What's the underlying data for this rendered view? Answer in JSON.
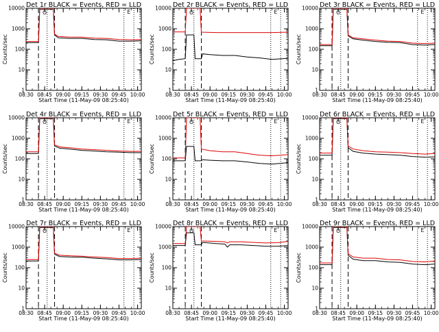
{
  "chart_data": {
    "type": "line",
    "scale": "log",
    "ylim": [
      1,
      10000
    ],
    "xlim": [
      "08:30",
      "10:03"
    ],
    "y_ticks": [
      "1",
      "10",
      "100",
      "1000",
      "10000"
    ],
    "x_ticks": [
      "08:30",
      "08:45",
      "09:00",
      "09:15",
      "09:30",
      "09:45",
      "10:00"
    ],
    "ylabel": "Counts/sec",
    "xlabel": "Start Time (11-May-09 08:25:40)",
    "colors": {
      "black_series": "#000000",
      "red_series": "#dd0000",
      "axes": "#000000"
    },
    "markers": {
      "circle_text": "O",
      "letter_text": "E"
    },
    "panels": [
      {
        "title": "Det 1r BLACK = Events, RED = LLD",
        "vlines_dashed": [
          "08:40",
          "08:53"
        ],
        "vlines_dotted": [
          "08:47",
          "09:49",
          "09:57"
        ],
        "black": [
          [
            "08:30",
            210
          ],
          [
            "08:40",
            210
          ],
          [
            "08:41",
            9000
          ],
          [
            "08:52",
            9000
          ],
          [
            "08:53",
            500
          ],
          [
            "08:56",
            360
          ],
          [
            "09:05",
            340
          ],
          [
            "09:15",
            340
          ],
          [
            "09:25",
            300
          ],
          [
            "09:35",
            290
          ],
          [
            "09:45",
            250
          ],
          [
            "09:55",
            250
          ],
          [
            "10:03",
            260
          ]
        ],
        "red": [
          [
            "08:30",
            240
          ],
          [
            "08:40",
            240
          ],
          [
            "08:41",
            10000
          ],
          [
            "08:52",
            10000
          ],
          [
            "08:53",
            550
          ],
          [
            "08:56",
            420
          ],
          [
            "09:05",
            390
          ],
          [
            "09:15",
            390
          ],
          [
            "09:25",
            350
          ],
          [
            "09:35",
            340
          ],
          [
            "09:45",
            300
          ],
          [
            "09:55",
            290
          ],
          [
            "10:03",
            300
          ]
        ]
      },
      {
        "title": "Det 2r BLACK = Events, RED = LLD",
        "vlines_dashed": [
          "08:40",
          "08:53"
        ],
        "vlines_dotted": [
          "08:47",
          "09:49",
          "09:57"
        ],
        "black": [
          [
            "08:30",
            28
          ],
          [
            "08:35",
            32
          ],
          [
            "08:40",
            35
          ],
          [
            "08:41",
            500
          ],
          [
            "08:47",
            500
          ],
          [
            "08:48",
            35
          ],
          [
            "08:53",
            35
          ],
          [
            "08:54",
            60
          ],
          [
            "09:00",
            55
          ],
          [
            "09:10",
            50
          ],
          [
            "09:20",
            50
          ],
          [
            "09:30",
            42
          ],
          [
            "09:40",
            38
          ],
          [
            "09:50",
            32
          ],
          [
            "10:03",
            36
          ]
        ],
        "red": [
          [
            "08:30",
            700
          ],
          [
            "08:40",
            700
          ],
          [
            "08:41",
            10000
          ],
          [
            "08:52",
            10000
          ],
          [
            "08:53",
            680
          ],
          [
            "09:05",
            650
          ],
          [
            "09:20",
            650
          ],
          [
            "09:35",
            650
          ],
          [
            "09:50",
            650
          ],
          [
            "10:03",
            680
          ]
        ]
      },
      {
        "title": "Det 3r BLACK = Events, RED = LLD",
        "vlines_dashed": [
          "08:40",
          "08:53"
        ],
        "vlines_dotted": [
          "08:47",
          "09:49",
          "09:57"
        ],
        "black": [
          [
            "08:30",
            150
          ],
          [
            "08:40",
            150
          ],
          [
            "08:41",
            9000
          ],
          [
            "08:52",
            9000
          ],
          [
            "08:53",
            450
          ],
          [
            "08:57",
            320
          ],
          [
            "09:05",
            280
          ],
          [
            "09:15",
            240
          ],
          [
            "09:25",
            220
          ],
          [
            "09:35",
            210
          ],
          [
            "09:45",
            170
          ],
          [
            "09:55",
            160
          ],
          [
            "10:03",
            170
          ]
        ],
        "red": [
          [
            "08:30",
            170
          ],
          [
            "08:40",
            170
          ],
          [
            "08:41",
            10000
          ],
          [
            "08:52",
            10000
          ],
          [
            "08:53",
            500
          ],
          [
            "08:57",
            360
          ],
          [
            "09:05",
            320
          ],
          [
            "09:15",
            280
          ],
          [
            "09:25",
            250
          ],
          [
            "09:35",
            240
          ],
          [
            "09:45",
            200
          ],
          [
            "09:55",
            190
          ],
          [
            "10:03",
            200
          ]
        ]
      },
      {
        "title": "Det 4r BLACK = Events, RED = LLD",
        "vlines_dashed": [
          "08:40",
          "08:53"
        ],
        "vlines_dotted": [
          "08:47",
          "09:49",
          "09:57"
        ],
        "black": [
          [
            "08:30",
            180
          ],
          [
            "08:40",
            180
          ],
          [
            "08:41",
            9000
          ],
          [
            "08:52",
            9000
          ],
          [
            "08:53",
            420
          ],
          [
            "08:57",
            330
          ],
          [
            "09:05",
            300
          ],
          [
            "09:15",
            260
          ],
          [
            "09:25",
            240
          ],
          [
            "09:35",
            220
          ],
          [
            "09:45",
            210
          ],
          [
            "09:55",
            200
          ],
          [
            "10:03",
            200
          ]
        ],
        "red": [
          [
            "08:30",
            220
          ],
          [
            "08:40",
            220
          ],
          [
            "08:41",
            10000
          ],
          [
            "08:52",
            10000
          ],
          [
            "08:53",
            480
          ],
          [
            "08:57",
            380
          ],
          [
            "09:05",
            350
          ],
          [
            "09:15",
            300
          ],
          [
            "09:25",
            280
          ],
          [
            "09:35",
            260
          ],
          [
            "09:45",
            240
          ],
          [
            "09:55",
            230
          ],
          [
            "10:03",
            230
          ]
        ]
      },
      {
        "title": "Det 5r BLACK = Events, RED = LLD",
        "vlines_dashed": [
          "08:40",
          "08:53"
        ],
        "vlines_dotted": [
          "08:47",
          "09:49",
          "09:57"
        ],
        "black": [
          [
            "08:30",
            80
          ],
          [
            "08:40",
            80
          ],
          [
            "08:41",
            400
          ],
          [
            "08:47",
            400
          ],
          [
            "08:48",
            80
          ],
          [
            "08:53",
            80
          ],
          [
            "08:54",
            90
          ],
          [
            "09:00",
            85
          ],
          [
            "09:10",
            80
          ],
          [
            "09:20",
            80
          ],
          [
            "09:30",
            70
          ],
          [
            "09:40",
            60
          ],
          [
            "09:50",
            55
          ],
          [
            "10:03",
            65
          ]
        ],
        "red": [
          [
            "08:30",
            110
          ],
          [
            "08:40",
            110
          ],
          [
            "08:41",
            10000
          ],
          [
            "08:52",
            10000
          ],
          [
            "08:53",
            300
          ],
          [
            "09:00",
            250
          ],
          [
            "09:10",
            220
          ],
          [
            "09:20",
            220
          ],
          [
            "09:30",
            180
          ],
          [
            "09:40",
            150
          ],
          [
            "09:50",
            140
          ],
          [
            "10:03",
            160
          ]
        ]
      },
      {
        "title": "Det 6r BLACK = Events, RED = LLD",
        "vlines_dashed": [
          "08:40",
          "08:53"
        ],
        "vlines_dotted": [
          "08:47",
          "09:49",
          "09:57"
        ],
        "black": [
          [
            "08:30",
            150
          ],
          [
            "08:40",
            150
          ],
          [
            "08:41",
            9000
          ],
          [
            "08:52",
            9000
          ],
          [
            "08:53",
            350
          ],
          [
            "08:57",
            230
          ],
          [
            "09:05",
            190
          ],
          [
            "09:15",
            170
          ],
          [
            "09:25",
            160
          ],
          [
            "09:35",
            150
          ],
          [
            "09:45",
            130
          ],
          [
            "09:55",
            120
          ],
          [
            "10:03",
            125
          ]
        ],
        "red": [
          [
            "08:30",
            190
          ],
          [
            "08:40",
            190
          ],
          [
            "08:41",
            10000
          ],
          [
            "08:52",
            10000
          ],
          [
            "08:53",
            420
          ],
          [
            "08:57",
            300
          ],
          [
            "09:05",
            250
          ],
          [
            "09:15",
            220
          ],
          [
            "09:25",
            210
          ],
          [
            "09:35",
            200
          ],
          [
            "09:45",
            180
          ],
          [
            "09:55",
            170
          ],
          [
            "10:03",
            180
          ]
        ]
      },
      {
        "title": "Det 7r BLACK = Events, RED = LLD",
        "vlines_dashed": [
          "08:40",
          "08:53"
        ],
        "vlines_dotted": [
          "08:47",
          "09:49",
          "09:57"
        ],
        "black": [
          [
            "08:30",
            210
          ],
          [
            "08:40",
            210
          ],
          [
            "08:41",
            9000
          ],
          [
            "08:52",
            9000
          ],
          [
            "08:53",
            450
          ],
          [
            "08:57",
            350
          ],
          [
            "09:05",
            330
          ],
          [
            "09:15",
            320
          ],
          [
            "09:25",
            290
          ],
          [
            "09:35",
            270
          ],
          [
            "09:45",
            240
          ],
          [
            "09:55",
            240
          ],
          [
            "10:03",
            250
          ]
        ],
        "red": [
          [
            "08:30",
            250
          ],
          [
            "08:40",
            250
          ],
          [
            "08:41",
            10000
          ],
          [
            "08:52",
            10000
          ],
          [
            "08:53",
            500
          ],
          [
            "08:57",
            400
          ],
          [
            "09:05",
            380
          ],
          [
            "09:15",
            360
          ],
          [
            "09:25",
            330
          ],
          [
            "09:35",
            310
          ],
          [
            "09:45",
            280
          ],
          [
            "09:55",
            280
          ],
          [
            "10:03",
            290
          ]
        ]
      },
      {
        "title": "Det 8r BLACK = Events, RED = LLD",
        "vlines_dashed": [
          "08:40",
          "08:53"
        ],
        "vlines_dotted": [
          "08:47",
          "09:49",
          "09:57"
        ],
        "black": [
          [
            "08:30",
            1200
          ],
          [
            "08:40",
            1200
          ],
          [
            "08:41",
            5000
          ],
          [
            "08:47",
            5000
          ],
          [
            "08:48",
            1300
          ],
          [
            "08:53",
            1300
          ],
          [
            "08:54",
            1700
          ],
          [
            "09:05",
            1500
          ],
          [
            "09:12",
            1400
          ],
          [
            "09:14",
            1000
          ],
          [
            "09:16",
            1300
          ],
          [
            "09:25",
            1300
          ],
          [
            "09:35",
            1200
          ],
          [
            "09:45",
            1100
          ],
          [
            "09:55",
            1100
          ],
          [
            "10:03",
            1200
          ]
        ],
        "red": [
          [
            "08:30",
            1500
          ],
          [
            "08:40",
            1500
          ],
          [
            "08:41",
            10000
          ],
          [
            "08:52",
            10000
          ],
          [
            "08:53",
            2000
          ],
          [
            "09:05",
            1900
          ],
          [
            "09:12",
            1800
          ],
          [
            "09:14",
            1600
          ],
          [
            "09:16",
            1800
          ],
          [
            "09:25",
            1800
          ],
          [
            "09:35",
            1700
          ],
          [
            "09:45",
            1600
          ],
          [
            "09:55",
            1650
          ],
          [
            "10:03",
            1900
          ]
        ]
      },
      {
        "title": "Det 9r BLACK = Events, RED = LLD",
        "vlines_dashed": [
          "08:40",
          "08:53"
        ],
        "vlines_dotted": [
          "08:47",
          "09:49",
          "09:57"
        ],
        "black": [
          [
            "08:30",
            140
          ],
          [
            "08:40",
            140
          ],
          [
            "08:41",
            9000
          ],
          [
            "08:52",
            9000
          ],
          [
            "08:53",
            400
          ],
          [
            "08:57",
            260
          ],
          [
            "09:05",
            220
          ],
          [
            "09:15",
            220
          ],
          [
            "09:25",
            190
          ],
          [
            "09:35",
            180
          ],
          [
            "09:45",
            150
          ],
          [
            "09:55",
            140
          ],
          [
            "10:03",
            150
          ]
        ],
        "red": [
          [
            "08:30",
            170
          ],
          [
            "08:40",
            170
          ],
          [
            "08:41",
            10000
          ],
          [
            "08:52",
            10000
          ],
          [
            "08:53",
            480
          ],
          [
            "08:57",
            330
          ],
          [
            "09:05",
            290
          ],
          [
            "09:15",
            290
          ],
          [
            "09:25",
            250
          ],
          [
            "09:35",
            240
          ],
          [
            "09:45",
            200
          ],
          [
            "09:55",
            190
          ],
          [
            "10:03",
            210
          ]
        ]
      }
    ]
  }
}
